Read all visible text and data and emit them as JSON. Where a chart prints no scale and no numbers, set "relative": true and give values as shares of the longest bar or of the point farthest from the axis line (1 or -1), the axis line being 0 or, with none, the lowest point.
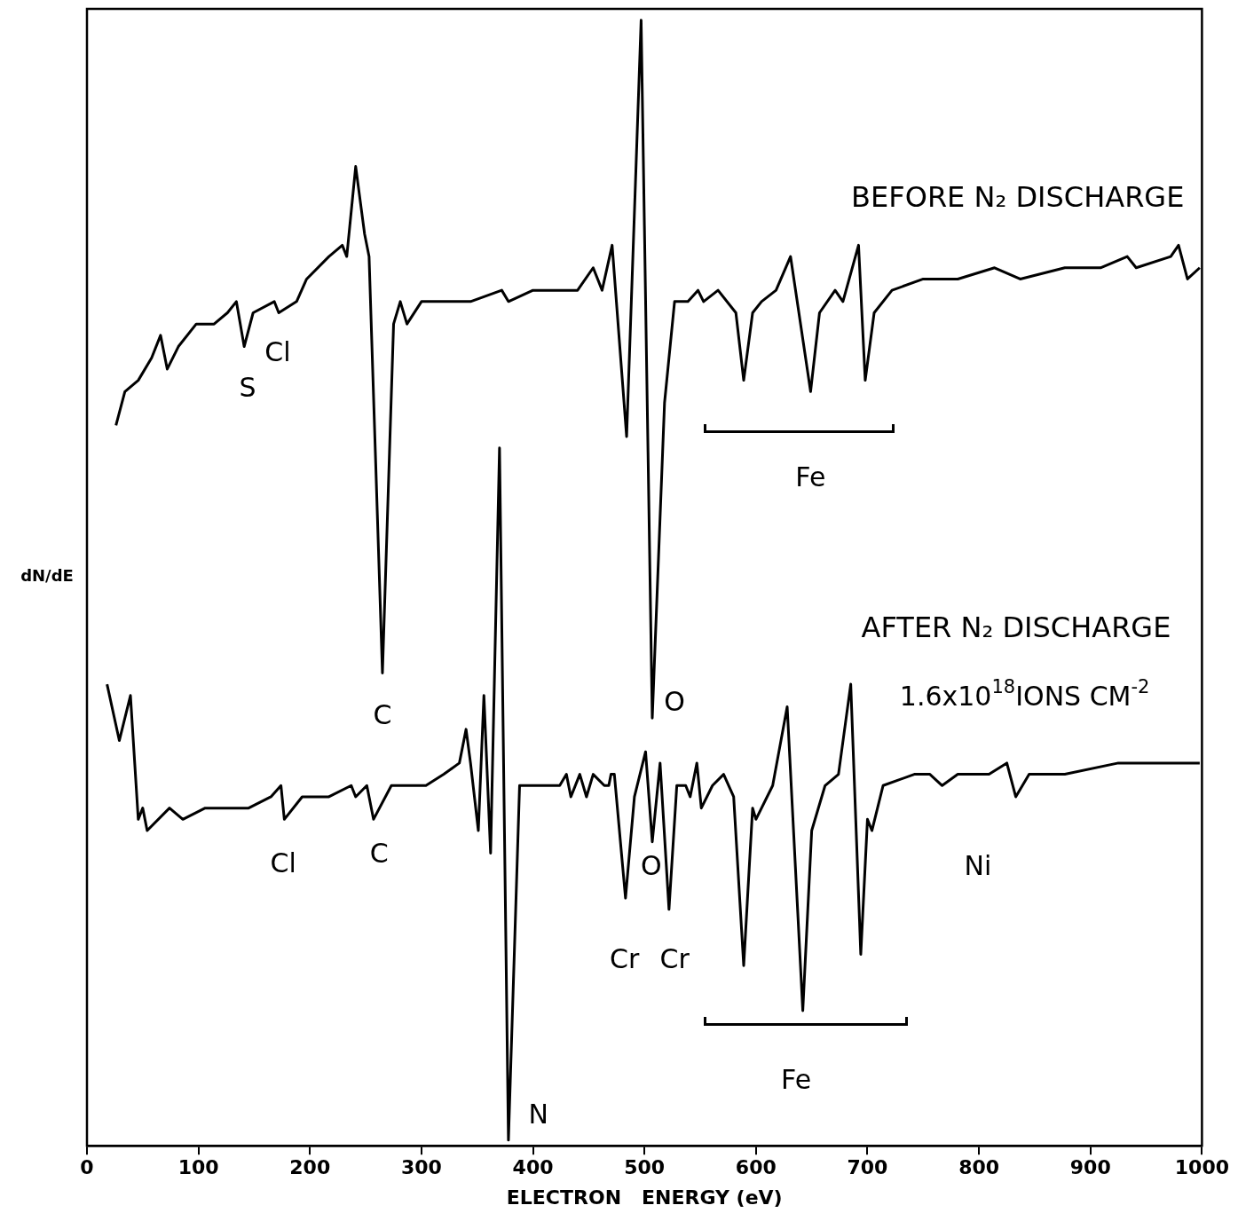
{
  "chart_data": {
    "type": "line",
    "relative": true,
    "xlabel": "ELECTRON   ENERGY (eV)",
    "ylabel": "dN/dE",
    "xlim": [
      0,
      1000
    ],
    "xticks": [
      0,
      100,
      200,
      300,
      400,
      500,
      600,
      700,
      800,
      900,
      1000
    ],
    "marker": "none",
    "line_style": "solid",
    "series": [
      {
        "name": "BEFORE N₂ DISCHARGE",
        "color": "#000000",
        "x": [
          26,
          34,
          46,
          58,
          66,
          72,
          82,
          98,
          114,
          126,
          134,
          141,
          149,
          168,
          172,
          188,
          197,
          217,
          229,
          233,
          241,
          249,
          253,
          265,
          275,
          281,
          287,
          300,
          320,
          344,
          372,
          378,
          400,
          432,
          440,
          454,
          462,
          471,
          484,
          497,
          507,
          518,
          527,
          539,
          548,
          553,
          566,
          582,
          589,
          597,
          605,
          618,
          631,
          649,
          657,
          671,
          678,
          692,
          698,
          706,
          722,
          750,
          781,
          814,
          837,
          877,
          909,
          933,
          941,
          972,
          979,
          987,
          998
        ],
        "values": [
          0.64,
          0.67,
          0.68,
          0.7,
          0.72,
          0.69,
          0.71,
          0.73,
          0.73,
          0.74,
          0.75,
          0.71,
          0.74,
          0.75,
          0.74,
          0.75,
          0.77,
          0.79,
          0.8,
          0.79,
          0.87,
          0.81,
          0.79,
          0.42,
          0.73,
          0.75,
          0.73,
          0.75,
          0.75,
          0.75,
          0.76,
          0.75,
          0.76,
          0.76,
          0.76,
          0.78,
          0.76,
          0.8,
          0.63,
          1.0,
          0.38,
          0.66,
          0.75,
          0.75,
          0.76,
          0.75,
          0.76,
          0.74,
          0.68,
          0.74,
          0.75,
          0.76,
          0.79,
          0.67,
          0.74,
          0.76,
          0.75,
          0.8,
          0.68,
          0.74,
          0.76,
          0.77,
          0.77,
          0.78,
          0.77,
          0.78,
          0.78,
          0.79,
          0.78,
          0.79,
          0.8,
          0.77,
          0.78
        ]
      },
      {
        "name": "AFTER N₂ DISCHARGE",
        "color": "#000000",
        "x": [
          18,
          29,
          39,
          46,
          50,
          54,
          74,
          86,
          106,
          122,
          141,
          145,
          165,
          174,
          177,
          193,
          217,
          237,
          241,
          251,
          257,
          273,
          304,
          320,
          334,
          340,
          344,
          351,
          356,
          362,
          370,
          378,
          388,
          400,
          408,
          424,
          430,
          434,
          442,
          448,
          454,
          464,
          468,
          470,
          473,
          483,
          491,
          501,
          507,
          514,
          522,
          529,
          537,
          541,
          547,
          551,
          561,
          571,
          580,
          589,
          597,
          600,
          615,
          628,
          642,
          650,
          662,
          674,
          685,
          694,
          700,
          704,
          714,
          742,
          756,
          767,
          781,
          809,
          825,
          833,
          845,
          877,
          925,
          998
        ],
        "values": [
          0.41,
          0.36,
          0.4,
          0.29,
          0.3,
          0.28,
          0.3,
          0.29,
          0.3,
          0.3,
          0.3,
          0.3,
          0.31,
          0.32,
          0.29,
          0.31,
          0.31,
          0.32,
          0.31,
          0.32,
          0.29,
          0.32,
          0.32,
          0.33,
          0.34,
          0.37,
          0.34,
          0.28,
          0.4,
          0.26,
          0.62,
          0.005,
          0.32,
          0.32,
          0.32,
          0.32,
          0.33,
          0.31,
          0.33,
          0.31,
          0.33,
          0.32,
          0.32,
          0.33,
          0.33,
          0.22,
          0.31,
          0.35,
          0.27,
          0.34,
          0.21,
          0.32,
          0.32,
          0.31,
          0.34,
          0.3,
          0.32,
          0.33,
          0.31,
          0.16,
          0.3,
          0.29,
          0.32,
          0.39,
          0.12,
          0.28,
          0.32,
          0.33,
          0.41,
          0.17,
          0.29,
          0.28,
          0.32,
          0.33,
          0.33,
          0.32,
          0.33,
          0.33,
          0.34,
          0.31,
          0.33,
          0.33,
          0.34,
          0.34
        ]
      }
    ],
    "annotations": [
      "S",
      "Cl",
      "C",
      "O",
      "Fe",
      "1.6x10$^{18}$IONS CM$^{-2}$",
      "Cl",
      "C",
      "O",
      "Cr",
      "Cr",
      "N",
      "Ni",
      "Fe"
    ]
  }
}
